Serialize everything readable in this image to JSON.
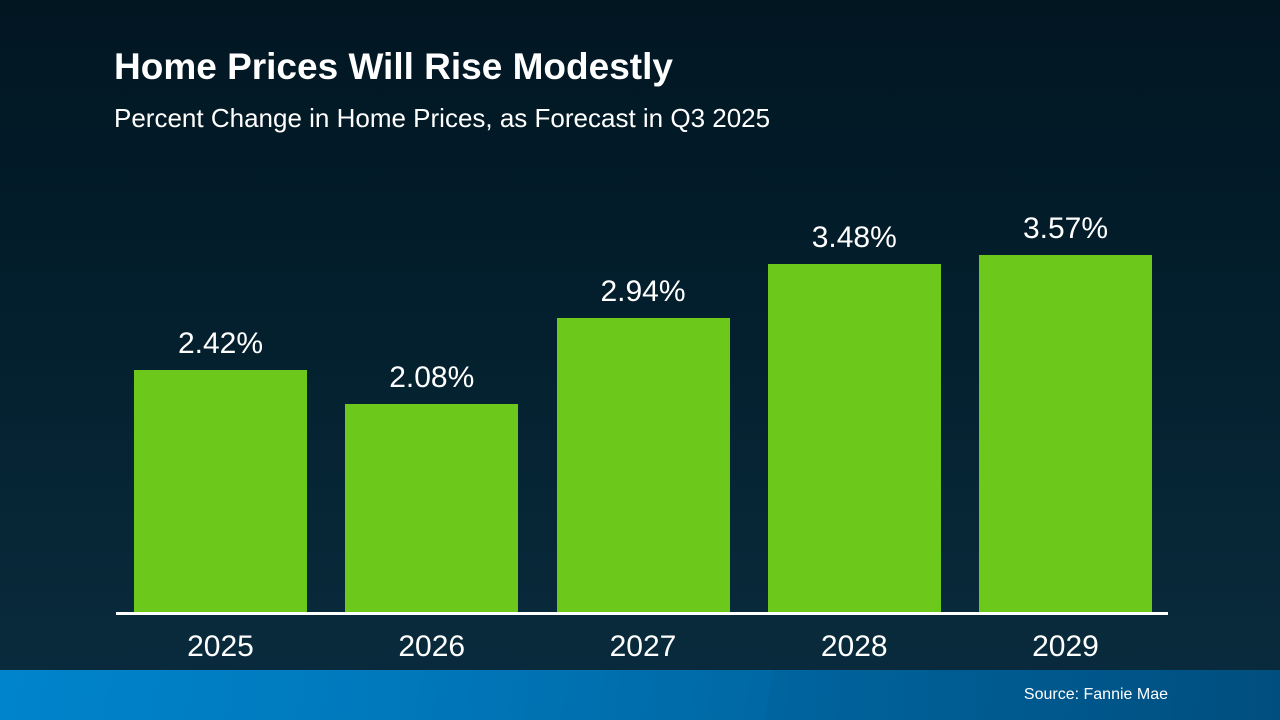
{
  "header": {
    "title": "Home Prices Will Rise Modestly",
    "subtitle": "Percent Change in Home Prices, as Forecast in Q3 2025"
  },
  "footer": {
    "source": "Source: Fannie Mae"
  },
  "colors": {
    "bar": "#6cc91b",
    "axis": "#ffffff",
    "text": "#ffffff",
    "background_top": "#021622",
    "background_bottom": "#0a2c3e",
    "footer_gradient_left": "#0084cc",
    "footer_gradient_right": "#004d7d"
  },
  "chart_data": {
    "type": "bar",
    "title": "Home Prices Will Rise Modestly",
    "subtitle": "Percent Change in Home Prices, as Forecast in Q3 2025",
    "categories": [
      "2025",
      "2026",
      "2027",
      "2028",
      "2029"
    ],
    "values": [
      2.42,
      2.08,
      2.94,
      3.48,
      3.57
    ],
    "value_labels": [
      "2.42%",
      "2.08%",
      "2.94%",
      "3.48%",
      "3.57%"
    ],
    "value_suffix": "%",
    "value_decimals": 2,
    "xlabel": "",
    "ylabel": "",
    "ylim": [
      0,
      3.6
    ],
    "grid": false,
    "legend": false,
    "source": "Source: Fannie Mae"
  }
}
